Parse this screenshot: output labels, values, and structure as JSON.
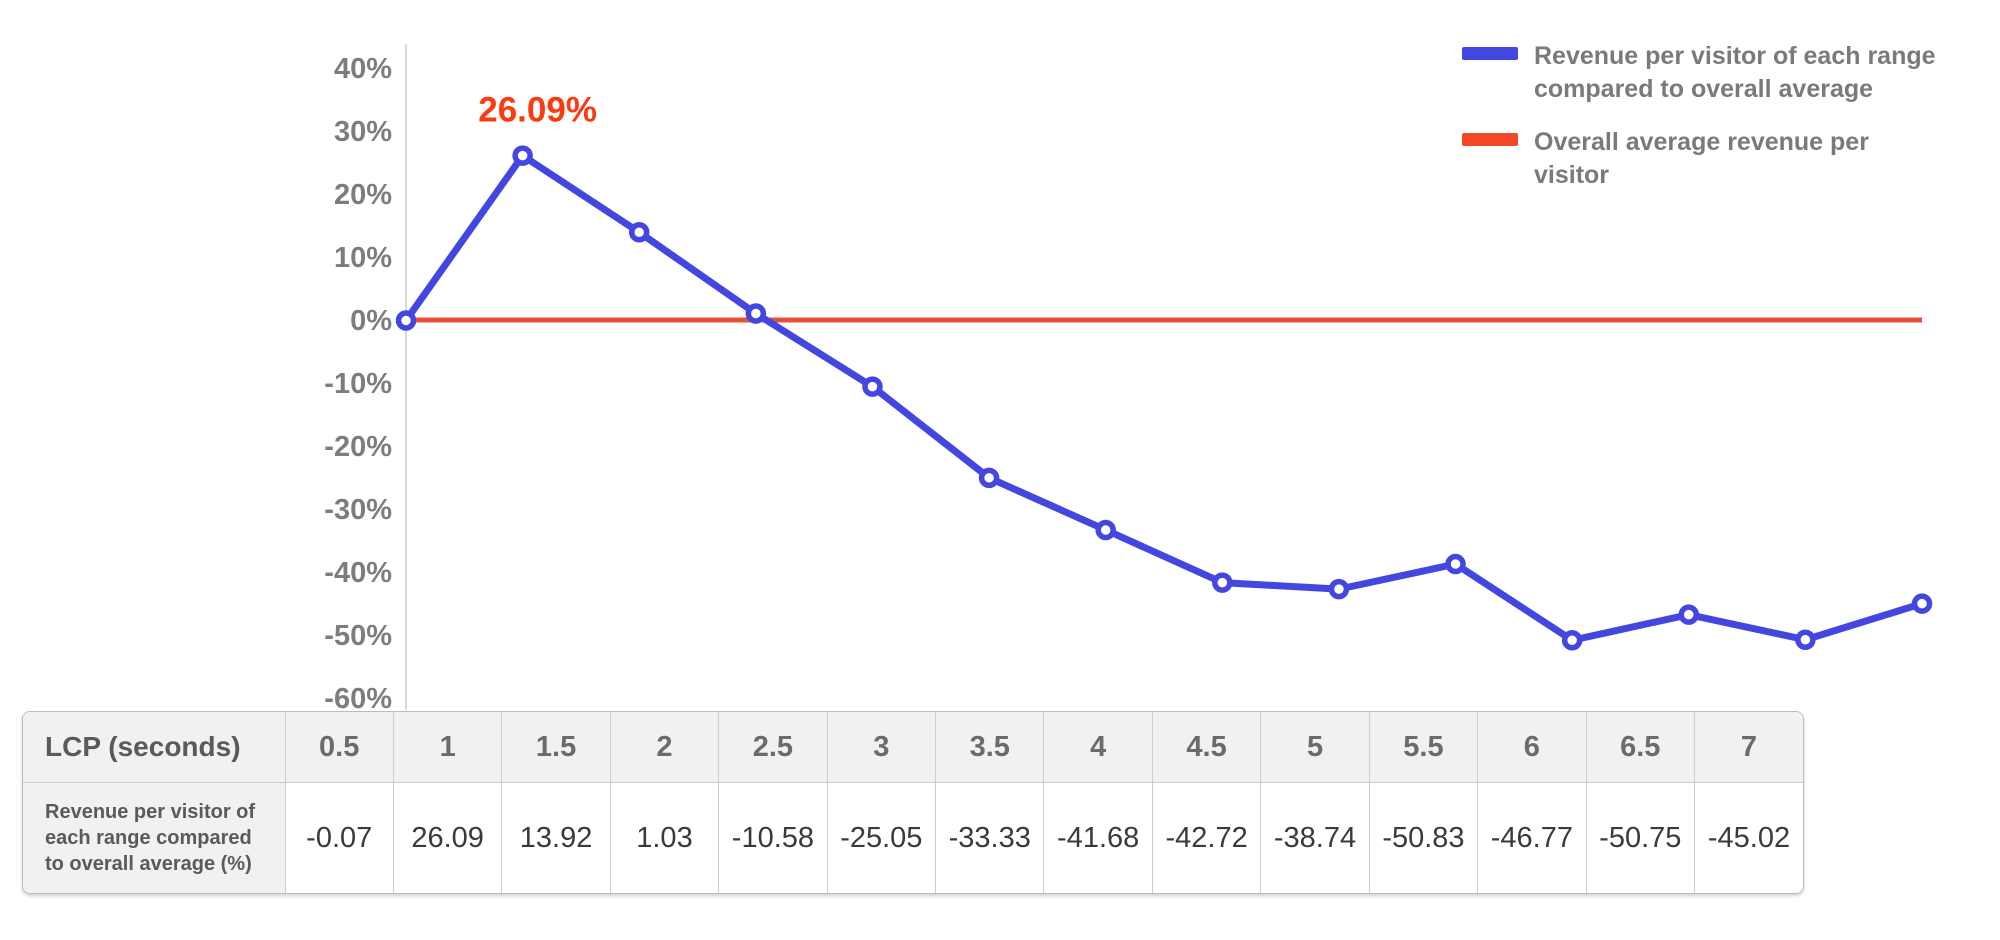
{
  "chart": {
    "legend": {
      "items": [
        {
          "label": "Revenue per visitor of each range compared to overall average",
          "color": "#4347E0"
        },
        {
          "label": "Overall average revenue per visitor",
          "color": "#F24A26"
        }
      ]
    },
    "colors": {
      "line_blue": "#4347E0",
      "baseline_red": "#E8503A",
      "annotation_red": "#FB3A0F",
      "axis_gray": "#d9d9d9",
      "tick_text_gray": "#7d7d7d"
    }
  },
  "chart_data": {
    "type": "line",
    "x": [
      0.5,
      1,
      1.5,
      2,
      2.5,
      3,
      3.5,
      4,
      4.5,
      5,
      5.5,
      6,
      6.5,
      7
    ],
    "series": [
      {
        "name": "Revenue per visitor of each range compared to overall average",
        "values": [
          -0.07,
          26.09,
          13.92,
          1.03,
          -10.58,
          -25.05,
          -33.33,
          -41.68,
          -42.72,
          -38.74,
          -50.83,
          -46.77,
          -50.75,
          -45.02
        ],
        "color": "#4347E0"
      }
    ],
    "baseline": {
      "name": "Overall average revenue per visitor",
      "value": 0,
      "color": "#E8503A"
    },
    "annotations": [
      {
        "text": "26.09%",
        "x": 1,
        "y": 26.09,
        "color": "#FB3A0F"
      }
    ],
    "title": "",
    "xlabel": "LCP (seconds)",
    "ylabel": "",
    "ylim": [
      -60,
      40
    ],
    "ytick_values": [
      40,
      30,
      20,
      10,
      0,
      -10,
      -20,
      -30,
      -40,
      -50,
      -60
    ],
    "ytick_labels": [
      "40%",
      "30%",
      "20%",
      "10%",
      "0%",
      "-10%",
      "-20%",
      "-30%",
      "-40%",
      "-50%",
      "-60%"
    ],
    "grid": "off",
    "legend_position": "top-right"
  },
  "table": {
    "header_label": "LCP (seconds)",
    "columns": [
      "0.5",
      "1",
      "1.5",
      "2",
      "2.5",
      "3",
      "3.5",
      "4",
      "4.5",
      "5",
      "5.5",
      "6",
      "6.5",
      "7"
    ],
    "row_label": "Revenue per visitor of each range compared to overall average (%)",
    "values": [
      "-0.07",
      "26.09",
      "13.92",
      "1.03",
      "-10.58",
      "-25.05",
      "-33.33",
      "-41.68",
      "-42.72",
      "-38.74",
      "-50.83",
      "-46.77",
      "-50.75",
      "-45.02"
    ]
  }
}
